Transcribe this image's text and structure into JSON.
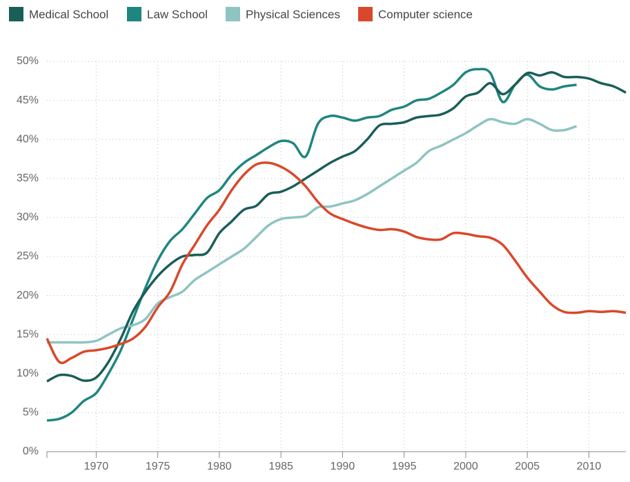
{
  "chart_data": {
    "type": "line",
    "x": [
      1966,
      1967,
      1968,
      1969,
      1970,
      1971,
      1972,
      1973,
      1974,
      1975,
      1976,
      1977,
      1978,
      1979,
      1980,
      1981,
      1982,
      1983,
      1984,
      1985,
      1986,
      1987,
      1988,
      1989,
      1990,
      1991,
      1992,
      1993,
      1994,
      1995,
      1996,
      1997,
      1998,
      1999,
      2000,
      2001,
      2002,
      2003,
      2004,
      2005,
      2006,
      2007,
      2008,
      2009,
      2010,
      2011,
      2012,
      2013
    ],
    "series": [
      {
        "name": "Medical School",
        "color": "#1a5e58",
        "values": [
          9,
          9.8,
          9.7,
          9.1,
          9.5,
          11.5,
          14.5,
          18,
          20.5,
          22.5,
          24,
          25,
          25.2,
          25.5,
          28,
          29.5,
          31,
          31.5,
          33,
          33.3,
          34,
          35,
          36,
          37,
          37.8,
          38.5,
          40,
          41.8,
          42,
          42.2,
          42.8,
          43,
          43.2,
          44,
          45.5,
          46,
          47.2,
          45.8,
          47,
          48.5,
          48.2,
          48.6,
          48,
          48,
          47.8,
          47.2,
          46.8,
          46
        ]
      },
      {
        "name": "Law School",
        "color": "#1f8580",
        "values": [
          4,
          4.2,
          5,
          6.5,
          7.5,
          10,
          13,
          17,
          21,
          24.5,
          27,
          28.5,
          30.5,
          32.5,
          33.5,
          35.5,
          37,
          38,
          39,
          39.8,
          39.5,
          37.8,
          42,
          43,
          42.8,
          42.4,
          42.8,
          43,
          43.8,
          44.2,
          45,
          45.2,
          46,
          47,
          48.6,
          49,
          48.5,
          44.8,
          47,
          48.3,
          46.8,
          46.4,
          46.8,
          47,
          null,
          null,
          null,
          null
        ]
      },
      {
        "name": "Physical Sciences",
        "color": "#8ec4c2",
        "values": [
          14,
          14,
          14,
          14,
          14.2,
          15,
          15.8,
          16.2,
          17,
          19,
          19.8,
          20.5,
          22,
          23,
          24,
          25,
          26,
          27.5,
          29,
          29.8,
          30,
          30.2,
          31.3,
          31.4,
          31.8,
          32.2,
          33,
          34,
          35,
          36,
          37,
          38.5,
          39.2,
          40,
          40.8,
          41.8,
          42.6,
          42.2,
          42,
          42.6,
          42,
          41.2,
          41.2,
          41.7,
          null,
          null,
          null,
          null
        ]
      },
      {
        "name": "Computer science",
        "color": "#d9482b",
        "values": [
          14.5,
          11.5,
          12,
          12.8,
          13,
          13.3,
          13.8,
          14.5,
          16,
          18.5,
          20.5,
          24,
          26.5,
          29,
          31,
          33.5,
          35.5,
          36.8,
          37,
          36.5,
          35.5,
          34,
          32,
          30.5,
          29.8,
          29.2,
          28.7,
          28.4,
          28.5,
          28.2,
          27.5,
          27.2,
          27.2,
          28,
          27.9,
          27.6,
          27.4,
          26.5,
          24.5,
          22.3,
          20.5,
          18.8,
          17.9,
          17.8,
          18,
          17.9,
          18,
          17.8
        ]
      }
    ],
    "xlim": [
      1966,
      2013
    ],
    "xticks": [
      1970,
      1975,
      1980,
      1985,
      1990,
      1995,
      2000,
      2005,
      2010
    ],
    "ylim": [
      0,
      50
    ],
    "yticks": [
      {
        "value": 0,
        "label": "0%"
      },
      {
        "value": 5,
        "label": "5%"
      },
      {
        "value": 10,
        "label": "10%"
      },
      {
        "value": 15,
        "label": "15%"
      },
      {
        "value": 20,
        "label": "20%"
      },
      {
        "value": 25,
        "label": "25%"
      },
      {
        "value": 30,
        "label": "30%"
      },
      {
        "value": 35,
        "label": "35%"
      },
      {
        "value": 40,
        "label": "40%"
      },
      {
        "value": 45,
        "label": "45%"
      },
      {
        "value": 50,
        "label": "50%"
      }
    ],
    "grid": true,
    "legend": "top"
  }
}
